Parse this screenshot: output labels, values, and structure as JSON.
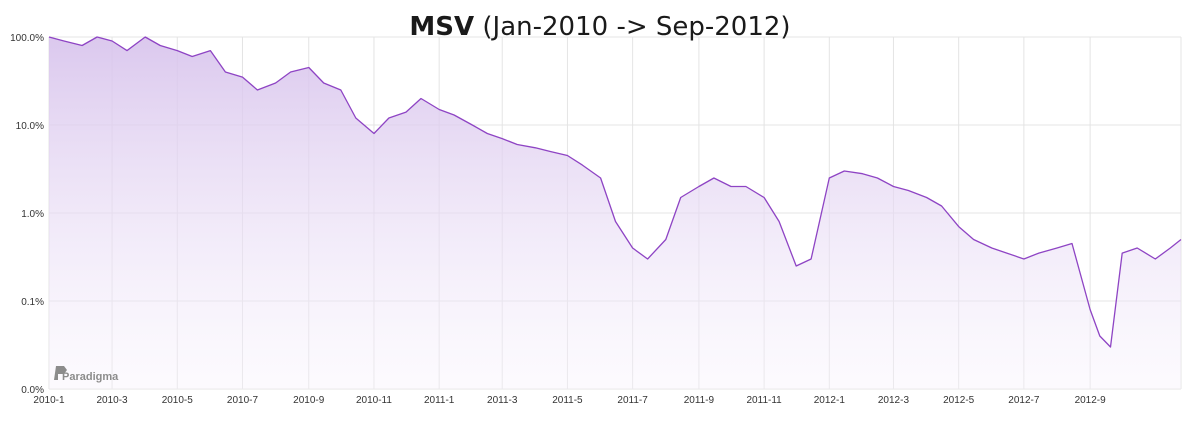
{
  "title": {
    "bold": "MSV",
    "rest": "(Jan-2010 -> Sep-2012)"
  },
  "watermark": "Paradigma",
  "colors": {
    "line": "#8e44c4",
    "fill_top": "#d7c2ec",
    "fill_bottom": "#f7f2fc",
    "grid": "#e4e4e4"
  },
  "chart_data": {
    "type": "area",
    "yscale": "log",
    "ylim": [
      0.0001,
      1
    ],
    "ytick_values": [
      0.0001,
      0.001,
      0.01,
      0.1,
      1
    ],
    "ytick_labels": [
      "0.0%",
      "0.1%",
      "1.0%",
      "10.0%",
      "100.0%"
    ],
    "xlim": [
      "2010-01-01",
      "2012-11-25"
    ],
    "xtick_dates": [
      "2010-01-01",
      "2010-03-01",
      "2010-05-01",
      "2010-07-01",
      "2010-09-01",
      "2010-11-01",
      "2011-01-01",
      "2011-03-01",
      "2011-05-01",
      "2011-07-01",
      "2011-09-01",
      "2011-11-01",
      "2012-01-01",
      "2012-03-01",
      "2012-05-01",
      "2012-07-01",
      "2012-09-01"
    ],
    "xtick_labels": [
      "2010-1",
      "2010-3",
      "2010-5",
      "2010-7",
      "2010-9",
      "2010-11",
      "2011-1",
      "2011-3",
      "2011-5",
      "2011-7",
      "2011-9",
      "2011-11",
      "2012-1",
      "2012-3",
      "2012-5",
      "2012-7",
      "2012-9"
    ],
    "grid": true,
    "series": [
      {
        "name": "",
        "x": [
          "2010-01-01",
          "2010-01-15",
          "2010-02-01",
          "2010-02-15",
          "2010-03-01",
          "2010-03-15",
          "2010-04-01",
          "2010-04-15",
          "2010-05-01",
          "2010-05-15",
          "2010-06-01",
          "2010-06-15",
          "2010-07-01",
          "2010-07-15",
          "2010-08-01",
          "2010-08-15",
          "2010-09-01",
          "2010-09-15",
          "2010-10-01",
          "2010-10-15",
          "2010-11-01",
          "2010-11-15",
          "2010-12-01",
          "2010-12-15",
          "2011-01-01",
          "2011-01-15",
          "2011-02-01",
          "2011-02-15",
          "2011-03-01",
          "2011-03-15",
          "2011-04-01",
          "2011-04-15",
          "2011-05-01",
          "2011-05-15",
          "2011-06-01",
          "2011-06-15",
          "2011-07-01",
          "2011-07-15",
          "2011-08-01",
          "2011-08-15",
          "2011-09-01",
          "2011-09-15",
          "2011-10-01",
          "2011-10-15",
          "2011-11-01",
          "2011-11-15",
          "2011-12-01",
          "2011-12-15",
          "2012-01-01",
          "2012-01-15",
          "2012-02-01",
          "2012-02-15",
          "2012-03-01",
          "2012-03-15",
          "2012-04-01",
          "2012-04-15",
          "2012-05-01",
          "2012-05-15",
          "2012-06-01",
          "2012-06-15",
          "2012-07-01",
          "2012-07-15",
          "2012-08-01",
          "2012-08-15",
          "2012-09-01",
          "2012-09-10",
          "2012-09-20",
          "2012-10-01",
          "2012-10-15",
          "2012-11-01",
          "2012-11-15",
          "2012-11-25"
        ],
        "y": [
          1.0,
          0.9,
          0.8,
          1.0,
          0.9,
          0.7,
          1.0,
          0.8,
          0.7,
          0.6,
          0.7,
          0.4,
          0.35,
          0.25,
          0.3,
          0.4,
          0.45,
          0.3,
          0.25,
          0.12,
          0.08,
          0.12,
          0.14,
          0.2,
          0.15,
          0.13,
          0.1,
          0.08,
          0.07,
          0.06,
          0.055,
          0.05,
          0.045,
          0.035,
          0.025,
          0.008,
          0.004,
          0.003,
          0.005,
          0.015,
          0.02,
          0.025,
          0.02,
          0.02,
          0.015,
          0.008,
          0.0025,
          0.003,
          0.025,
          0.03,
          0.028,
          0.025,
          0.02,
          0.018,
          0.015,
          0.012,
          0.007,
          0.005,
          0.004,
          0.0035,
          0.003,
          0.0035,
          0.004,
          0.0045,
          0.0008,
          0.0004,
          0.0003,
          0.0035,
          0.004,
          0.003,
          0.004,
          0.005
        ]
      }
    ]
  }
}
